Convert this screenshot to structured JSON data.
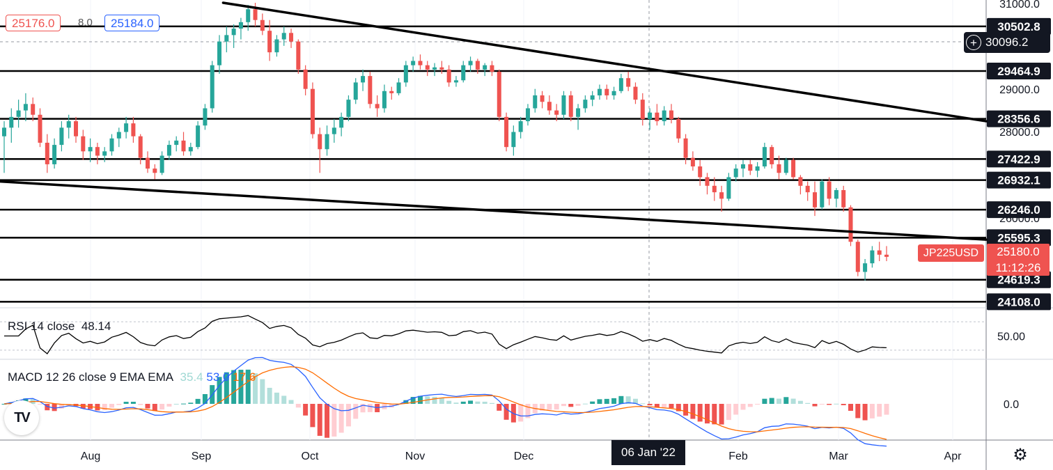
{
  "header": {
    "bid": "25176.0",
    "spread": "8.0",
    "ask": "25184.0"
  },
  "crosshair": {
    "price": "30096.2",
    "date": "06 Jan '22"
  },
  "symbol": {
    "ticker": "JP225USD",
    "last": "25180.0",
    "countdown": "11:12:26"
  },
  "horizontal_levels": [
    {
      "value": 30502.8,
      "label": "30502.8"
    },
    {
      "value": 29464.9,
      "label": "29464.9"
    },
    {
      "value": 28356.6,
      "label": "28356.6"
    },
    {
      "value": 27422.9,
      "label": "27422.9"
    },
    {
      "value": 26932.1,
      "label": "26932.1"
    },
    {
      "value": 26246.0,
      "label": "26246.0"
    },
    {
      "value": 25595.3,
      "label": "25595.3"
    },
    {
      "value": 24619.3,
      "label": "24619.3"
    },
    {
      "value": 24108.0,
      "label": "24108.0"
    }
  ],
  "indicators": {
    "rsi": {
      "name": "RSI 14 close",
      "value": "48.14",
      "axis_label": "50.00",
      "color": "#000000"
    },
    "macd": {
      "name": "MACD 12 26 close 9 EMA EMA",
      "hist": "35.4",
      "macd": "53.0",
      "signal": "17.6",
      "axis_label": "0.0",
      "hist_color": "#26a69a",
      "macd_color": "#2962ff",
      "signal_color": "#ff6d00"
    }
  },
  "colors": {
    "up": "#26a69a",
    "down": "#ef5350",
    "line": "#000000"
  },
  "chart_data": {
    "type": "candlestick",
    "symbol": "JP225USD",
    "y_axis_ticks": [
      "31000.0",
      "29000.0",
      "28000.0",
      "26000.0"
    ],
    "x_axis_ticks": [
      "Aug",
      "Sep",
      "Oct",
      "Nov",
      "Dec",
      "06 Jan '22",
      "Feb",
      "Mar",
      "Apr"
    ],
    "ylim": [
      24000,
      31050
    ],
    "trendlines": [
      {
        "name": "upper",
        "from": {
          "x": "2021-09-08",
          "y": 31050
        },
        "to": {
          "x": "2022-04-08",
          "y": 28300
        }
      },
      {
        "name": "lower",
        "from": {
          "x": "2021-07-08",
          "y": 26900
        },
        "to": {
          "x": "2022-04-08",
          "y": 25550
        }
      }
    ],
    "series": [
      {
        "name": "price",
        "values": [
          [
            27950,
            28300,
            27100,
            28150
          ],
          [
            28150,
            28600,
            27800,
            28400
          ],
          [
            28400,
            28800,
            28150,
            28550
          ],
          [
            28550,
            28950,
            28300,
            28700
          ],
          [
            28700,
            28850,
            28300,
            28450
          ],
          [
            28450,
            28600,
            27700,
            27800
          ],
          [
            27800,
            28000,
            27100,
            27300
          ],
          [
            27300,
            27900,
            27200,
            27750
          ],
          [
            27750,
            28300,
            27600,
            28150
          ],
          [
            28150,
            28450,
            27900,
            28300
          ],
          [
            28300,
            28400,
            27800,
            27950
          ],
          [
            27950,
            28100,
            27400,
            27600
          ],
          [
            27600,
            27900,
            27350,
            27700
          ],
          [
            27700,
            27800,
            27300,
            27500
          ],
          [
            27500,
            27700,
            27350,
            27600
          ],
          [
            27600,
            28000,
            27500,
            27900
          ],
          [
            27900,
            28150,
            27700,
            28050
          ],
          [
            28050,
            28400,
            27900,
            28250
          ],
          [
            28250,
            28400,
            27800,
            27950
          ],
          [
            27950,
            28000,
            27300,
            27450
          ],
          [
            27450,
            27600,
            27100,
            27200
          ],
          [
            27200,
            27300,
            26950,
            27100
          ],
          [
            27100,
            27600,
            27050,
            27500
          ],
          [
            27500,
            27850,
            27400,
            27750
          ],
          [
            27750,
            27950,
            27600,
            27850
          ],
          [
            27850,
            28050,
            27500,
            27600
          ],
          [
            27600,
            27800,
            27500,
            27700
          ],
          [
            27700,
            28300,
            27650,
            28200
          ],
          [
            28200,
            28700,
            28100,
            28600
          ],
          [
            28600,
            29700,
            28500,
            29600
          ],
          [
            29600,
            30300,
            29400,
            30150
          ],
          [
            30150,
            30500,
            29900,
            30300
          ],
          [
            30300,
            30550,
            30000,
            30450
          ],
          [
            30450,
            30700,
            30200,
            30600
          ],
          [
            30600,
            31000,
            30400,
            30900
          ],
          [
            30900,
            31050,
            30500,
            30650
          ],
          [
            30650,
            30800,
            30300,
            30400
          ],
          [
            30400,
            30650,
            29700,
            29900
          ],
          [
            29900,
            30300,
            29800,
            30200
          ],
          [
            30200,
            30500,
            30050,
            30350
          ],
          [
            30350,
            30450,
            30000,
            30150
          ],
          [
            30150,
            30200,
            29400,
            29500
          ],
          [
            29500,
            29600,
            28900,
            29050
          ],
          [
            29050,
            29200,
            27900,
            28000
          ],
          [
            28000,
            28150,
            27100,
            27650
          ],
          [
            27650,
            28200,
            27500,
            28000
          ],
          [
            28000,
            28350,
            27800,
            28150
          ],
          [
            28150,
            28500,
            27950,
            28400
          ],
          [
            28400,
            28900,
            28300,
            28800
          ],
          [
            28800,
            29300,
            28700,
            29200
          ],
          [
            29200,
            29500,
            29000,
            29350
          ],
          [
            29350,
            29450,
            28600,
            28700
          ],
          [
            28700,
            28900,
            28400,
            28600
          ],
          [
            28600,
            29150,
            28500,
            29000
          ],
          [
            29000,
            29100,
            28800,
            28950
          ],
          [
            28950,
            29300,
            28900,
            29200
          ],
          [
            29200,
            29700,
            29100,
            29600
          ],
          [
            29600,
            29800,
            29450,
            29700
          ],
          [
            29700,
            29850,
            29500,
            29600
          ],
          [
            29600,
            29700,
            29350,
            29500
          ],
          [
            29500,
            29650,
            29350,
            29550
          ],
          [
            29550,
            29700,
            29400,
            29500
          ],
          [
            29500,
            29600,
            29100,
            29200
          ],
          [
            29200,
            29350,
            29100,
            29250
          ],
          [
            29250,
            29700,
            29200,
            29600
          ],
          [
            29600,
            29800,
            29450,
            29700
          ],
          [
            29700,
            29750,
            29400,
            29500
          ],
          [
            29500,
            29650,
            29350,
            29600
          ],
          [
            29600,
            29700,
            29350,
            29450
          ],
          [
            29450,
            29500,
            28300,
            28400
          ],
          [
            28400,
            28500,
            27600,
            27700
          ],
          [
            27700,
            28200,
            27500,
            28050
          ],
          [
            28050,
            28400,
            27900,
            28300
          ],
          [
            28300,
            28700,
            28200,
            28600
          ],
          [
            28600,
            29050,
            28500,
            28900
          ],
          [
            28900,
            29000,
            28600,
            28750
          ],
          [
            28750,
            28900,
            28450,
            28550
          ],
          [
            28550,
            28700,
            28300,
            28450
          ],
          [
            28450,
            29000,
            28350,
            28900
          ],
          [
            28900,
            29000,
            28300,
            28400
          ],
          [
            28400,
            28700,
            28100,
            28600
          ],
          [
            28600,
            28900,
            28500,
            28800
          ],
          [
            28800,
            29000,
            28650,
            28900
          ],
          [
            28900,
            29150,
            28800,
            29050
          ],
          [
            29050,
            29150,
            28800,
            28900
          ],
          [
            28900,
            29100,
            28800,
            29000
          ],
          [
            29000,
            29400,
            28950,
            29300
          ],
          [
            29300,
            29450,
            29000,
            29100
          ],
          [
            29100,
            29200,
            28700,
            28800
          ],
          [
            28800,
            28950,
            28200,
            28350
          ],
          [
            28350,
            28600,
            28100,
            28500
          ],
          [
            28500,
            28700,
            28200,
            28300
          ],
          [
            28300,
            28650,
            28200,
            28550
          ],
          [
            28550,
            28700,
            28250,
            28350
          ],
          [
            28350,
            28400,
            27800,
            27900
          ],
          [
            27900,
            28000,
            27300,
            27450
          ],
          [
            27450,
            27600,
            27150,
            27250
          ],
          [
            27250,
            27400,
            26800,
            27000
          ],
          [
            27000,
            27100,
            26600,
            26800
          ],
          [
            26800,
            27000,
            26450,
            26650
          ],
          [
            26650,
            26800,
            26200,
            26500
          ],
          [
            26500,
            27100,
            26450,
            27000
          ],
          [
            27000,
            27300,
            26900,
            27200
          ],
          [
            27200,
            27400,
            27000,
            27300
          ],
          [
            27300,
            27400,
            27050,
            27150
          ],
          [
            27150,
            27350,
            27000,
            27250
          ],
          [
            27250,
            27800,
            27200,
            27700
          ],
          [
            27700,
            27750,
            27200,
            27300
          ],
          [
            27300,
            27500,
            26950,
            27100
          ],
          [
            27100,
            27450,
            27050,
            27400
          ],
          [
            27400,
            27450,
            26950,
            27000
          ],
          [
            27000,
            27050,
            26600,
            26800
          ],
          [
            26800,
            26900,
            26450,
            26650
          ],
          [
            26650,
            26900,
            26100,
            26300
          ],
          [
            26300,
            26950,
            26250,
            26900
          ],
          [
            26900,
            27000,
            26350,
            26500
          ],
          [
            26500,
            26750,
            26300,
            26700
          ],
          [
            26700,
            26800,
            26200,
            26300
          ],
          [
            26300,
            26350,
            25400,
            25500
          ],
          [
            25500,
            25550,
            24700,
            24800
          ],
          [
            24800,
            25100,
            24600,
            25000
          ],
          [
            25000,
            25400,
            24900,
            25300
          ],
          [
            25300,
            25500,
            25050,
            25200
          ],
          [
            25200,
            25400,
            25050,
            25150
          ]
        ]
      }
    ]
  }
}
